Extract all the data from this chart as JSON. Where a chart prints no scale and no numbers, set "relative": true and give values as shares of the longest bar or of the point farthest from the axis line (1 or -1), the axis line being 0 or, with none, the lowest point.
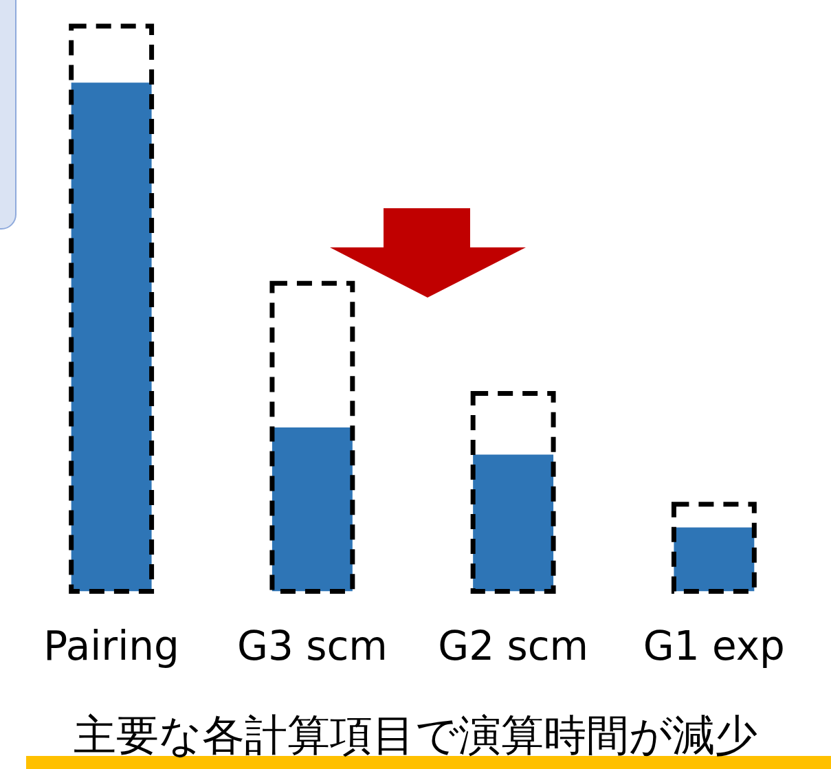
{
  "chart_data": {
    "type": "bar",
    "relative": true,
    "categories": [
      "Pairing",
      "G3 scm",
      "G2 scm",
      "G1 exp"
    ],
    "series": [
      {
        "color": "#000000",
        "line_style": "dashed",
        "values": [
          1,
          0.545,
          0.35,
          0.154
        ]
      },
      {
        "color": "#2e75b6",
        "values": [
          0.9,
          0.29,
          0.242,
          0.113
        ]
      }
    ],
    "annotations": [
      "主要な各計算項目で演算時間が減少"
    ],
    "legend": false,
    "grid": false
  }
}
